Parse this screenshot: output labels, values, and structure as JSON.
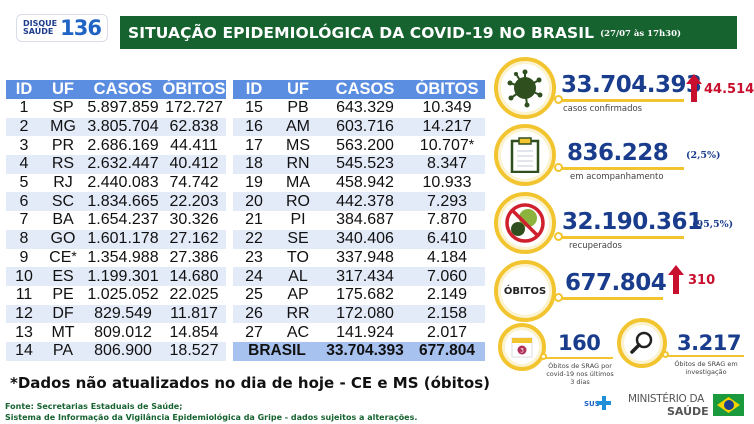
{
  "header": {
    "logo_small": "DISQUE SAÚDE",
    "logo_line1": "DISQUE",
    "logo_line2": "SAÚDE",
    "logo_number": "136",
    "title": "SITUAÇÃO EPIDEMIOLÓGICA DA COVID-19 NO BRASIL",
    "date": "(27/07 às 17h30)"
  },
  "table": {
    "columns": [
      "ID",
      "UF",
      "CASOS",
      "ÓBITOS"
    ],
    "left_rows": [
      {
        "id": "1",
        "uf": "SP",
        "casos": "5.897.859",
        "obitos": "172.727"
      },
      {
        "id": "2",
        "uf": "MG",
        "casos": "3.805.704",
        "obitos": "62.838"
      },
      {
        "id": "3",
        "uf": "PR",
        "casos": "2.686.169",
        "obitos": "44.411"
      },
      {
        "id": "4",
        "uf": "RS",
        "casos": "2.632.447",
        "obitos": "40.412"
      },
      {
        "id": "5",
        "uf": "RJ",
        "casos": "2.440.083",
        "obitos": "74.742"
      },
      {
        "id": "6",
        "uf": "SC",
        "casos": "1.834.665",
        "obitos": "22.203"
      },
      {
        "id": "7",
        "uf": "BA",
        "casos": "1.654.237",
        "obitos": "30.326"
      },
      {
        "id": "8",
        "uf": "GO",
        "casos": "1.601.178",
        "obitos": "27.162"
      },
      {
        "id": "9",
        "uf": "CE",
        "uf_mark": "*",
        "casos": "1.354.988",
        "obitos": "27.386"
      },
      {
        "id": "10",
        "uf": "ES",
        "casos": "1.199.301",
        "obitos": "14.680"
      },
      {
        "id": "11",
        "uf": "PE",
        "casos": "1.025.052",
        "obitos": "22.025"
      },
      {
        "id": "12",
        "uf": "DF",
        "casos": "829.549",
        "obitos": "11.817"
      },
      {
        "id": "13",
        "uf": "MT",
        "casos": "809.012",
        "obitos": "14.854"
      },
      {
        "id": "14",
        "uf": "PA",
        "casos": "806.900",
        "obitos": "18.527"
      }
    ],
    "right_rows": [
      {
        "id": "15",
        "uf": "PB",
        "casos": "643.329",
        "obitos": "10.349"
      },
      {
        "id": "16",
        "uf": "AM",
        "casos": "603.716",
        "obitos": "14.217"
      },
      {
        "id": "17",
        "uf": "MS",
        "casos": "563.200",
        "obitos": "10.707",
        "obitos_mark": "*"
      },
      {
        "id": "18",
        "uf": "RN",
        "casos": "545.523",
        "obitos": "8.347"
      },
      {
        "id": "19",
        "uf": "MA",
        "casos": "458.942",
        "obitos": "10.933"
      },
      {
        "id": "20",
        "uf": "RO",
        "casos": "442.378",
        "obitos": "7.293"
      },
      {
        "id": "21",
        "uf": "PI",
        "casos": "384.687",
        "obitos": "7.870"
      },
      {
        "id": "22",
        "uf": "SE",
        "casos": "340.406",
        "obitos": "6.410"
      },
      {
        "id": "23",
        "uf": "TO",
        "casos": "337.948",
        "obitos": "4.184"
      },
      {
        "id": "24",
        "uf": "AL",
        "casos": "317.434",
        "obitos": "7.060"
      },
      {
        "id": "25",
        "uf": "AP",
        "casos": "175.682",
        "obitos": "2.149"
      },
      {
        "id": "26",
        "uf": "RR",
        "casos": "172.080",
        "obitos": "2.158"
      },
      {
        "id": "27",
        "uf": "AC",
        "casos": "141.924",
        "obitos": "2.017"
      }
    ],
    "total": {
      "label": "BRASIL",
      "casos": "33.704.393",
      "obitos": "677.804"
    }
  },
  "stats": {
    "confirmed": {
      "value": "33.704.393",
      "label": "casos confirmados",
      "delta": "44.514",
      "icon": "virus-icon"
    },
    "monitoring": {
      "value": "836.228",
      "label": "em acompanhamento",
      "pct": "(2,5%)",
      "icon": "clipboard-icon"
    },
    "recovered": {
      "value": "32.190.361",
      "label": "recuperados",
      "pct": "(95,5%)",
      "icon": "no-virus-icon"
    },
    "deaths": {
      "value": "677.804",
      "badge": "ÓBITOS",
      "delta": "310"
    },
    "srag_recent": {
      "value": "160",
      "label_lines": [
        "Óbitos de SRAG por",
        "covid-19 nos últimos",
        "3 dias"
      ],
      "calendar_day": "3",
      "icon": "calendar-icon"
    },
    "srag_investigation": {
      "value": "3.217",
      "label_lines": [
        "Óbitos de SRAG em",
        "investigação"
      ],
      "icon": "magnifier-icon"
    }
  },
  "colors": {
    "header_green": "#176330",
    "table_header_blue": "#5b8ee0",
    "stat_blue": "#1a3c8c",
    "accent_yellow": "#f2c530",
    "delta_red": "#c8102e"
  },
  "footer": {
    "note": "*Dados não atualizados no dia de hoje - CE e MS (óbitos)",
    "source_line1": "Fonte: Secretarias Estaduais de Saúde;",
    "source_line2": "Sistema de Informação da Vigilância Epidemiológica da Gripe - dados sujeitos a alterações.",
    "sus": "SUS",
    "ministry_line1": "MINISTÉRIO DA",
    "ministry_line2": "SAÚDE"
  }
}
